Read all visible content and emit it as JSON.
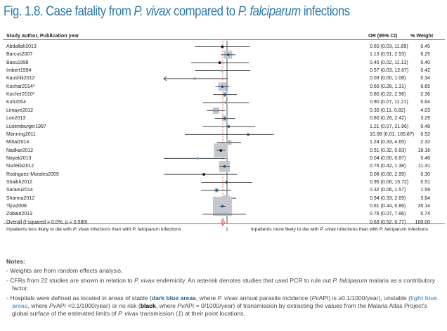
{
  "figure": {
    "title_prefix": "Fig. 1.8. Case fatality from ",
    "title_species1": "P. vivax",
    "title_mid": " compared to ",
    "title_species2": "P. falciparum",
    "title_suffix": " infections"
  },
  "colors": {
    "title": "#2f7aa8",
    "dark_blue": "#1f5f96",
    "light_blue": "#7ea7c9",
    "black": "#111111",
    "weight_box": "#c4c8cc",
    "pooled_line": "#d9534f",
    "ci_line": "#444444"
  },
  "chart_data": {
    "type": "forest",
    "title": "Case fatality from P. vivax compared to P. falciparum infections",
    "columns": {
      "study": "Study author, Publication year",
      "or": "OR (95% CI)",
      "weight": "% Weight"
    },
    "x_scale": "log",
    "null_value": 1,
    "null_label": "1",
    "xlim": [
      0.001,
      200
    ],
    "left_label_prefix": "Inpatients less likely to die with ",
    "left_label_sp1": "P. vivax",
    "left_label_mid": " infections than with ",
    "left_label_sp2": "P. falciparum",
    "left_label_suffix": " infections",
    "right_label_prefix": "Inpatients more likely to die with ",
    "right_label_sp1": "P. vivax",
    "right_label_mid": " infections than with ",
    "right_label_sp2": "P. falciparum",
    "right_label_suffix": " infections",
    "studies": [
      {
        "name": "Abdallah2013",
        "or": 0.6,
        "lo": 0.03,
        "hi": 11.89,
        "or_text": "0.60 (0.03, 11.89)",
        "weight": "0.45",
        "endemicity": "black"
      },
      {
        "name": "Barcus2007",
        "or": 1.13,
        "lo": 0.51,
        "hi": 2.53,
        "or_text": "1.13 (0.51, 2.53)",
        "weight": "6.25",
        "endemicity": "dark"
      },
      {
        "name": "Basu1998",
        "or": 0.45,
        "lo": 0.02,
        "hi": 11.13,
        "or_text": "0.45 (0.02, 11.13)",
        "weight": "0.40",
        "endemicity": "black"
      },
      {
        "name": "Imbert1994",
        "or": 0.57,
        "lo": 0.03,
        "hi": 12.67,
        "or_text": "0.57 (0.03, 12.67)",
        "weight": "0.42",
        "endemicity": "light"
      },
      {
        "name": "Kaushik2012",
        "or": 0.03,
        "lo": 0.0,
        "hi": 1.08,
        "or_text": "0.03 (0.00, 1.08)",
        "weight": "0.34",
        "endemicity": "light"
      },
      {
        "name": "Kochar2014*",
        "or": 0.6,
        "lo": 0.28,
        "hi": 1.31,
        "or_text": "0.60 (0.28, 1.31)",
        "weight": "6.65",
        "endemicity": "dark"
      },
      {
        "name": "Kocher2010*",
        "or": 0.8,
        "lo": 0.22,
        "hi": 2.96,
        "or_text": "0.80 (0.22, 2.96)",
        "weight": "2.36",
        "endemicity": "dark"
      },
      {
        "name": "Koh2004",
        "or": 0.9,
        "lo": 0.07,
        "hi": 11.21,
        "or_text": "0.90 (0.07, 11.21)",
        "weight": "0.64",
        "endemicity": "light"
      },
      {
        "name": "Limaye2012",
        "or": 0.3,
        "lo": 0.11,
        "hi": 0.82,
        "or_text": "0.30 (0.11, 0.82)",
        "weight": "4.03",
        "endemicity": "light"
      },
      {
        "name": "Lon2013",
        "or": 0.8,
        "lo": 0.26,
        "hi": 2.42,
        "or_text": "0.80 (0.26, 2.42)",
        "weight": "3.29",
        "endemicity": "dark"
      },
      {
        "name": "Luxemburger1997",
        "or": 1.21,
        "lo": 0.07,
        "hi": 21.96,
        "or_text": "1.21 (0.07, 21.96)",
        "weight": "0.48",
        "endemicity": "dark"
      },
      {
        "name": "Manning2011",
        "or": 10.08,
        "lo": 0.01,
        "hi": 165.87,
        "or_text": "10.08 (0.01, 165.87)",
        "weight": "0.52",
        "endemicity": "dark"
      },
      {
        "name": "Mittal2014",
        "or": 1.24,
        "lo": 0.33,
        "hi": 4.65,
        "or_text": "1.24 (0.33, 4.65)",
        "weight": "2.32",
        "endemicity": "light"
      },
      {
        "name": "Nadkar2012",
        "or": 0.51,
        "lo": 0.32,
        "hi": 0.83,
        "or_text": "0.51 (0.32, 0.83)",
        "weight": "18.16",
        "endemicity": "black"
      },
      {
        "name": "Nayak2013",
        "or": 0.04,
        "lo": 0.0,
        "hi": 0.87,
        "or_text": "0.04 (0.00, 0.87)",
        "weight": "0.46",
        "endemicity": "light"
      },
      {
        "name": "Nurleila2012",
        "or": 0.76,
        "lo": 0.42,
        "hi": 1.38,
        "or_text": "0.76 (0.42, 1.38)",
        "weight": "11.31",
        "endemicity": "dark"
      },
      {
        "name": "Rodriguez-Morales2009",
        "or": 0.08,
        "lo": 0.0,
        "hi": 2.99,
        "or_text": "0.08 (0.00, 2.99)",
        "weight": "0.30",
        "endemicity": "black"
      },
      {
        "name": "Shaikh2012",
        "or": 0.95,
        "lo": 0.06,
        "hi": 15.72,
        "or_text": "0.95 (0.06, 15.72)",
        "weight": "0.51",
        "endemicity": "dark"
      },
      {
        "name": "Saravu2014",
        "or": 0.32,
        "lo": 0.06,
        "hi": 1.57,
        "or_text": "0.32 (0.06, 1.57)",
        "weight": "1.59",
        "endemicity": "dark"
      },
      {
        "name": "Sharma2012",
        "or": 0.94,
        "lo": 0.33,
        "hi": 2.69,
        "or_text": "0.94 (0.33, 2.69)",
        "weight": "3.64",
        "endemicity": "light"
      },
      {
        "name": "Tijra2008",
        "or": 0.61,
        "lo": 0.44,
        "hi": 0.86,
        "or_text": "0.61 (0.44, 0.86)",
        "weight": "35.14",
        "endemicity": "dark"
      },
      {
        "name": "Zubairi2013",
        "or": 0.76,
        "lo": 0.07,
        "hi": 7.86,
        "or_text": "0.76 (0.07, 7.86)",
        "weight": "0.74",
        "endemicity": "light"
      }
    ],
    "overall": {
      "name": "Overall (I-squared = 0.0%, p = 0.580)",
      "or": 0.63,
      "lo": 0.52,
      "hi": 0.77,
      "or_text": "0.63 (0.52, 0.77)",
      "weight": "100.00"
    }
  },
  "notes": {
    "heading": "Notes:",
    "item1": "- Weights are from random effects analysis.",
    "item2_a": "- CFRs from 22 studies are shown in relation to ",
    "item2_sp1": "P. vivax",
    "item2_b": " endemicity. An asterisk denotes studies that used PCR to rule out ",
    "item2_sp2": "P. falciparum",
    "item2_c": " malaria as a contributory factor.",
    "item3_a": "- Hospitals were defined as located in areas of stable (",
    "item3_dark": "dark blue areas",
    "item3_b": ", where ",
    "item3_sp1": "P. vivax",
    "item3_c": " annual parasite incidence (",
    "item3_pv1": "Pv",
    "item3_d": "API) is ≥0.1/1000/year), unstable (",
    "item3_light": "light blue areas",
    "item3_e": ", where ",
    "item3_pv2": "Pv",
    "item3_f": "API <0.1/1000/year) or no risk (",
    "item3_black": "black",
    "item3_g": ", where ",
    "item3_pv3": "Pv",
    "item3_h": "API = 0/1000/year) of transmission by extracting the values from the Malaria Atlas Project’s global surface of the estimated limits of ",
    "item3_sp2": "P. vivax",
    "item3_i": " transmission (",
    "item3_ref": "1",
    "item3_j": ") at their point locations."
  }
}
